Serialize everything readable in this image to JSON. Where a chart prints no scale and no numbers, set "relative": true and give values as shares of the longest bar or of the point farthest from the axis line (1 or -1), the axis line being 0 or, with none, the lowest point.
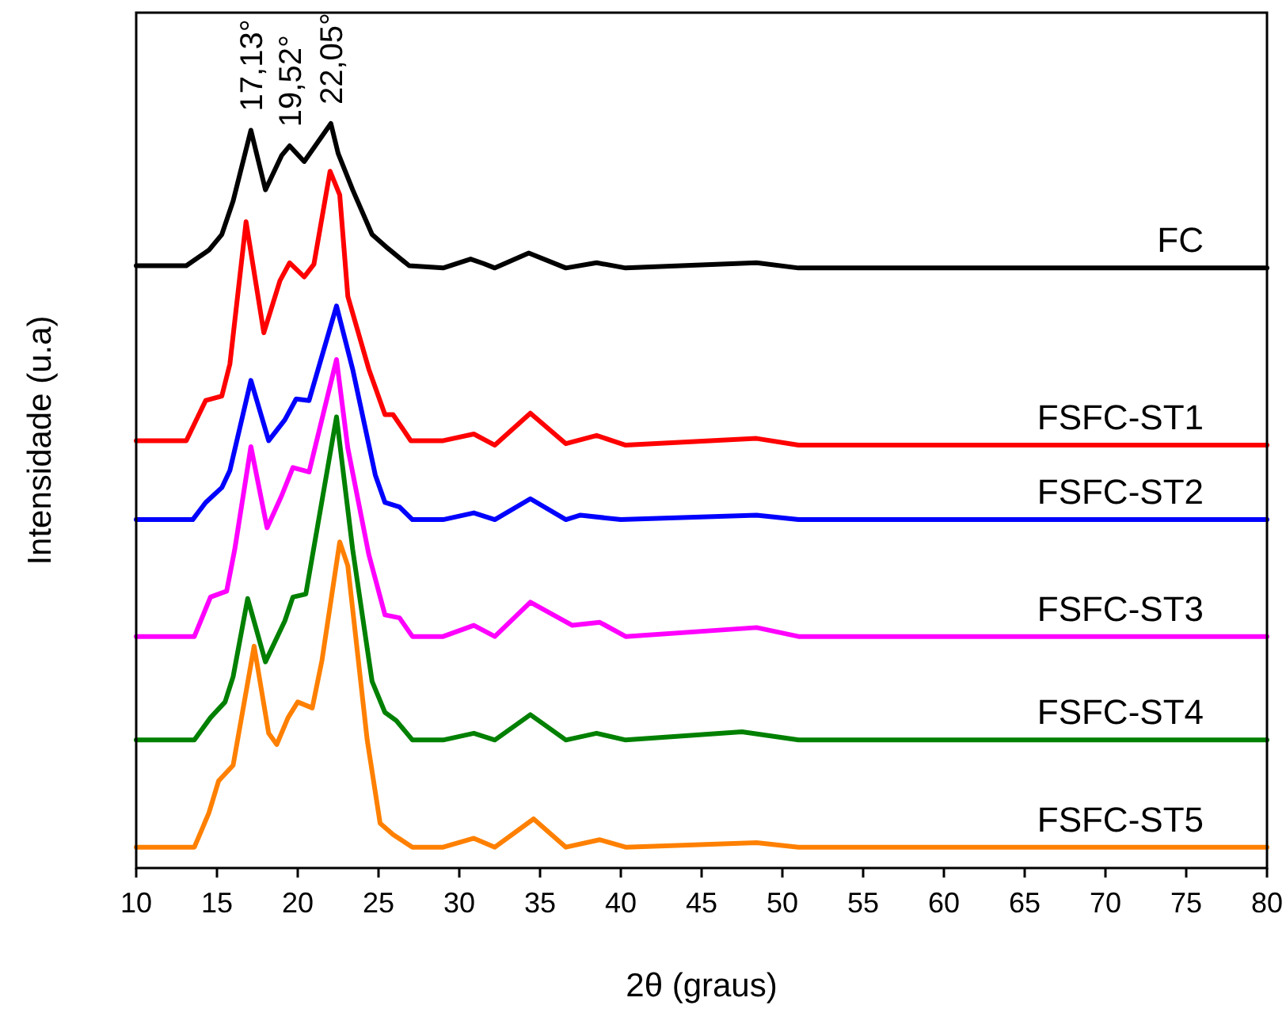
{
  "chart_data": {
    "type": "line",
    "relative": true,
    "xlabel": "2θ (graus)",
    "ylabel": "Intensidade (u.a)",
    "xlim": [
      10,
      80
    ],
    "xticks": [
      10,
      15,
      20,
      25,
      30,
      35,
      40,
      45,
      50,
      55,
      60,
      65,
      70,
      75,
      80
    ],
    "legend": false,
    "grid": false,
    "line_style": "solid",
    "annotations": [
      {
        "text": "17,13°",
        "x": 17.13,
        "y": 0.991
      },
      {
        "text": "19,52°",
        "x": 19.52,
        "y": 0.97
      },
      {
        "text": "22,05°",
        "x": 22.05,
        "y": 1.0
      }
    ],
    "series": [
      {
        "name": "FC",
        "color": "#000000",
        "x": [
          10,
          12,
          13.1,
          14.5,
          15.3,
          16,
          17.1,
          18,
          19,
          19.5,
          20.4,
          22.05,
          22.5,
          23.4,
          24.6,
          25.6,
          26.9,
          29,
          30.7,
          31.5,
          32.2,
          34.3,
          36.6,
          38.5,
          40.3,
          48.4,
          51,
          80
        ],
        "values": [
          0.809,
          0.809,
          0.809,
          0.83,
          0.851,
          0.896,
          0.991,
          0.911,
          0.957,
          0.97,
          0.949,
          1.0,
          0.96,
          0.911,
          0.851,
          0.832,
          0.809,
          0.806,
          0.818,
          0.812,
          0.806,
          0.826,
          0.806,
          0.813,
          0.806,
          0.813,
          0.806,
          0.806
        ]
      },
      {
        "name": "FSFC-ST1",
        "color": "#ff0000",
        "x": [
          10,
          13.1,
          14.3,
          15.3,
          15.8,
          16.8,
          17.9,
          18.9,
          19.5,
          20.4,
          21,
          22,
          22.6,
          23.1,
          24.4,
          25.4,
          25.9,
          27,
          29,
          30.9,
          32.2,
          34.4,
          36.6,
          38.5,
          40.3,
          48.4,
          51,
          80
        ],
        "values": [
          0.574,
          0.574,
          0.628,
          0.634,
          0.677,
          0.868,
          0.719,
          0.789,
          0.813,
          0.794,
          0.811,
          0.936,
          0.904,
          0.768,
          0.67,
          0.609,
          0.609,
          0.574,
          0.574,
          0.583,
          0.568,
          0.611,
          0.57,
          0.581,
          0.568,
          0.577,
          0.568,
          0.568
        ]
      },
      {
        "name": "FSFC-ST2",
        "color": "#0000ff",
        "x": [
          10,
          13.5,
          14.3,
          15.3,
          15.8,
          17.1,
          18.2,
          19.2,
          19.9,
          20.7,
          22.4,
          23.4,
          24.8,
          25.4,
          26.3,
          27.1,
          29,
          30.9,
          32.2,
          34.4,
          36.6,
          37.5,
          40,
          48.4,
          51,
          80
        ],
        "values": [
          0.468,
          0.468,
          0.491,
          0.511,
          0.534,
          0.655,
          0.574,
          0.602,
          0.63,
          0.628,
          0.755,
          0.67,
          0.528,
          0.491,
          0.485,
          0.468,
          0.468,
          0.477,
          0.468,
          0.496,
          0.468,
          0.474,
          0.468,
          0.474,
          0.468,
          0.468
        ]
      },
      {
        "name": "FSFC-ST3",
        "color": "#ff00ff",
        "x": [
          10,
          13.6,
          14.6,
          15.6,
          16.1,
          17.1,
          18.1,
          19,
          19.7,
          20.7,
          22.4,
          23.1,
          24.4,
          25.4,
          26.3,
          27.1,
          29,
          30.9,
          32.2,
          34.4,
          37,
          38.7,
          40.3,
          48.4,
          51,
          80
        ],
        "values": [
          0.311,
          0.311,
          0.364,
          0.372,
          0.428,
          0.566,
          0.457,
          0.5,
          0.538,
          0.532,
          0.683,
          0.564,
          0.421,
          0.34,
          0.336,
          0.311,
          0.311,
          0.326,
          0.311,
          0.357,
          0.326,
          0.33,
          0.311,
          0.323,
          0.311,
          0.311
        ]
      },
      {
        "name": "FSFC-ST4",
        "color": "#008000",
        "x": [
          10,
          13.6,
          14.6,
          15.5,
          16,
          16.9,
          18,
          19.2,
          19.7,
          20.5,
          22.4,
          23.4,
          24.6,
          25.4,
          26.1,
          27.1,
          29,
          30.9,
          32.2,
          34.4,
          36.6,
          38.5,
          40.3,
          47.5,
          51,
          80
        ],
        "values": [
          0.172,
          0.172,
          0.202,
          0.223,
          0.257,
          0.362,
          0.277,
          0.332,
          0.364,
          0.368,
          0.606,
          0.428,
          0.251,
          0.209,
          0.198,
          0.172,
          0.172,
          0.181,
          0.172,
          0.206,
          0.172,
          0.181,
          0.172,
          0.183,
          0.172,
          0.172
        ]
      },
      {
        "name": "FSFC-ST5",
        "color": "#ff8000",
        "x": [
          10,
          13.6,
          14.5,
          15.1,
          16,
          17.3,
          18.2,
          18.7,
          19.4,
          20,
          20.9,
          21.5,
          22.6,
          23.1,
          24.3,
          25.1,
          25.9,
          27.1,
          29,
          30.9,
          32.2,
          34.6,
          36.6,
          38.7,
          40.3,
          48.4,
          51,
          80
        ],
        "values": [
          0.028,
          0.028,
          0.074,
          0.117,
          0.138,
          0.298,
          0.181,
          0.166,
          0.202,
          0.223,
          0.215,
          0.279,
          0.438,
          0.406,
          0.172,
          0.06,
          0.045,
          0.028,
          0.028,
          0.04,
          0.028,
          0.066,
          0.028,
          0.038,
          0.028,
          0.034,
          0.028,
          0.028
        ]
      }
    ]
  }
}
